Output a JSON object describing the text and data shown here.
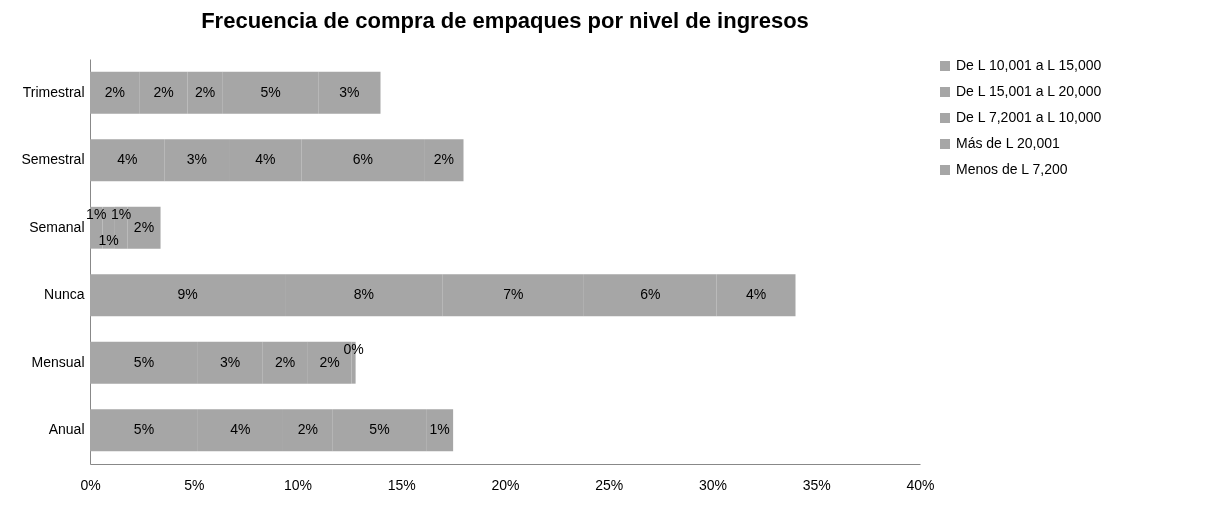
{
  "chart_data": {
    "type": "bar",
    "orientation": "horizontal",
    "stacked": true,
    "title": "Frecuencia de compra de empaques por nivel de ingresos",
    "categories": [
      "Trimestral",
      "Semestral",
      "Semanal",
      "Nunca",
      "Mensual",
      "Anual"
    ],
    "series": [
      {
        "name": "Menos de L 7,200",
        "color": "#a6a6a6",
        "values": [
          2.4,
          3.6,
          0.6,
          9.4,
          5.2,
          5.2
        ],
        "value_labels": [
          "2%",
          "4%",
          "1%",
          "9%",
          "5%",
          "5%"
        ]
      },
      {
        "name": "Más de L 20,001",
        "color": "#a6a6a6",
        "values": [
          2.3,
          3.1,
          0.6,
          7.6,
          3.1,
          4.1
        ],
        "value_labels": [
          "2%",
          "3%",
          "1%",
          "8%",
          "3%",
          "4%"
        ]
      },
      {
        "name": "De L 7,2001 a L 10,000",
        "color": "#a6a6a6",
        "values": [
          1.7,
          3.5,
          0.6,
          6.8,
          2.2,
          2.4
        ],
        "value_labels": [
          "2%",
          "4%",
          "1%",
          "7%",
          "2%",
          "2%"
        ]
      },
      {
        "name": "De L 15,001 a L 20,000",
        "color": "#a6a6a6",
        "values": [
          4.6,
          5.9,
          1.6,
          6.4,
          2.1,
          4.5
        ],
        "value_labels": [
          "5%",
          "6%",
          "2%",
          "6%",
          "2%",
          "5%"
        ]
      },
      {
        "name": "De L 10,001 a L 15,000",
        "color": "#a6a6a6",
        "values": [
          3.0,
          1.9,
          null,
          3.8,
          0.2,
          1.3
        ],
        "value_labels": [
          "3%",
          "2%",
          null,
          "4%",
          "0%",
          "1%"
        ]
      }
    ],
    "xlim": [
      0,
      40
    ],
    "xticks": [
      {
        "value": 0,
        "label": "0%"
      },
      {
        "value": 5,
        "label": "5%"
      },
      {
        "value": 10,
        "label": "10%"
      },
      {
        "value": 15,
        "label": "15%"
      },
      {
        "value": 20,
        "label": "20%"
      },
      {
        "value": 25,
        "label": "25%"
      },
      {
        "value": 30,
        "label": "30%"
      },
      {
        "value": 35,
        "label": "35%"
      },
      {
        "value": 40,
        "label": "40%"
      }
    ],
    "grid": false,
    "legend": "right"
  }
}
